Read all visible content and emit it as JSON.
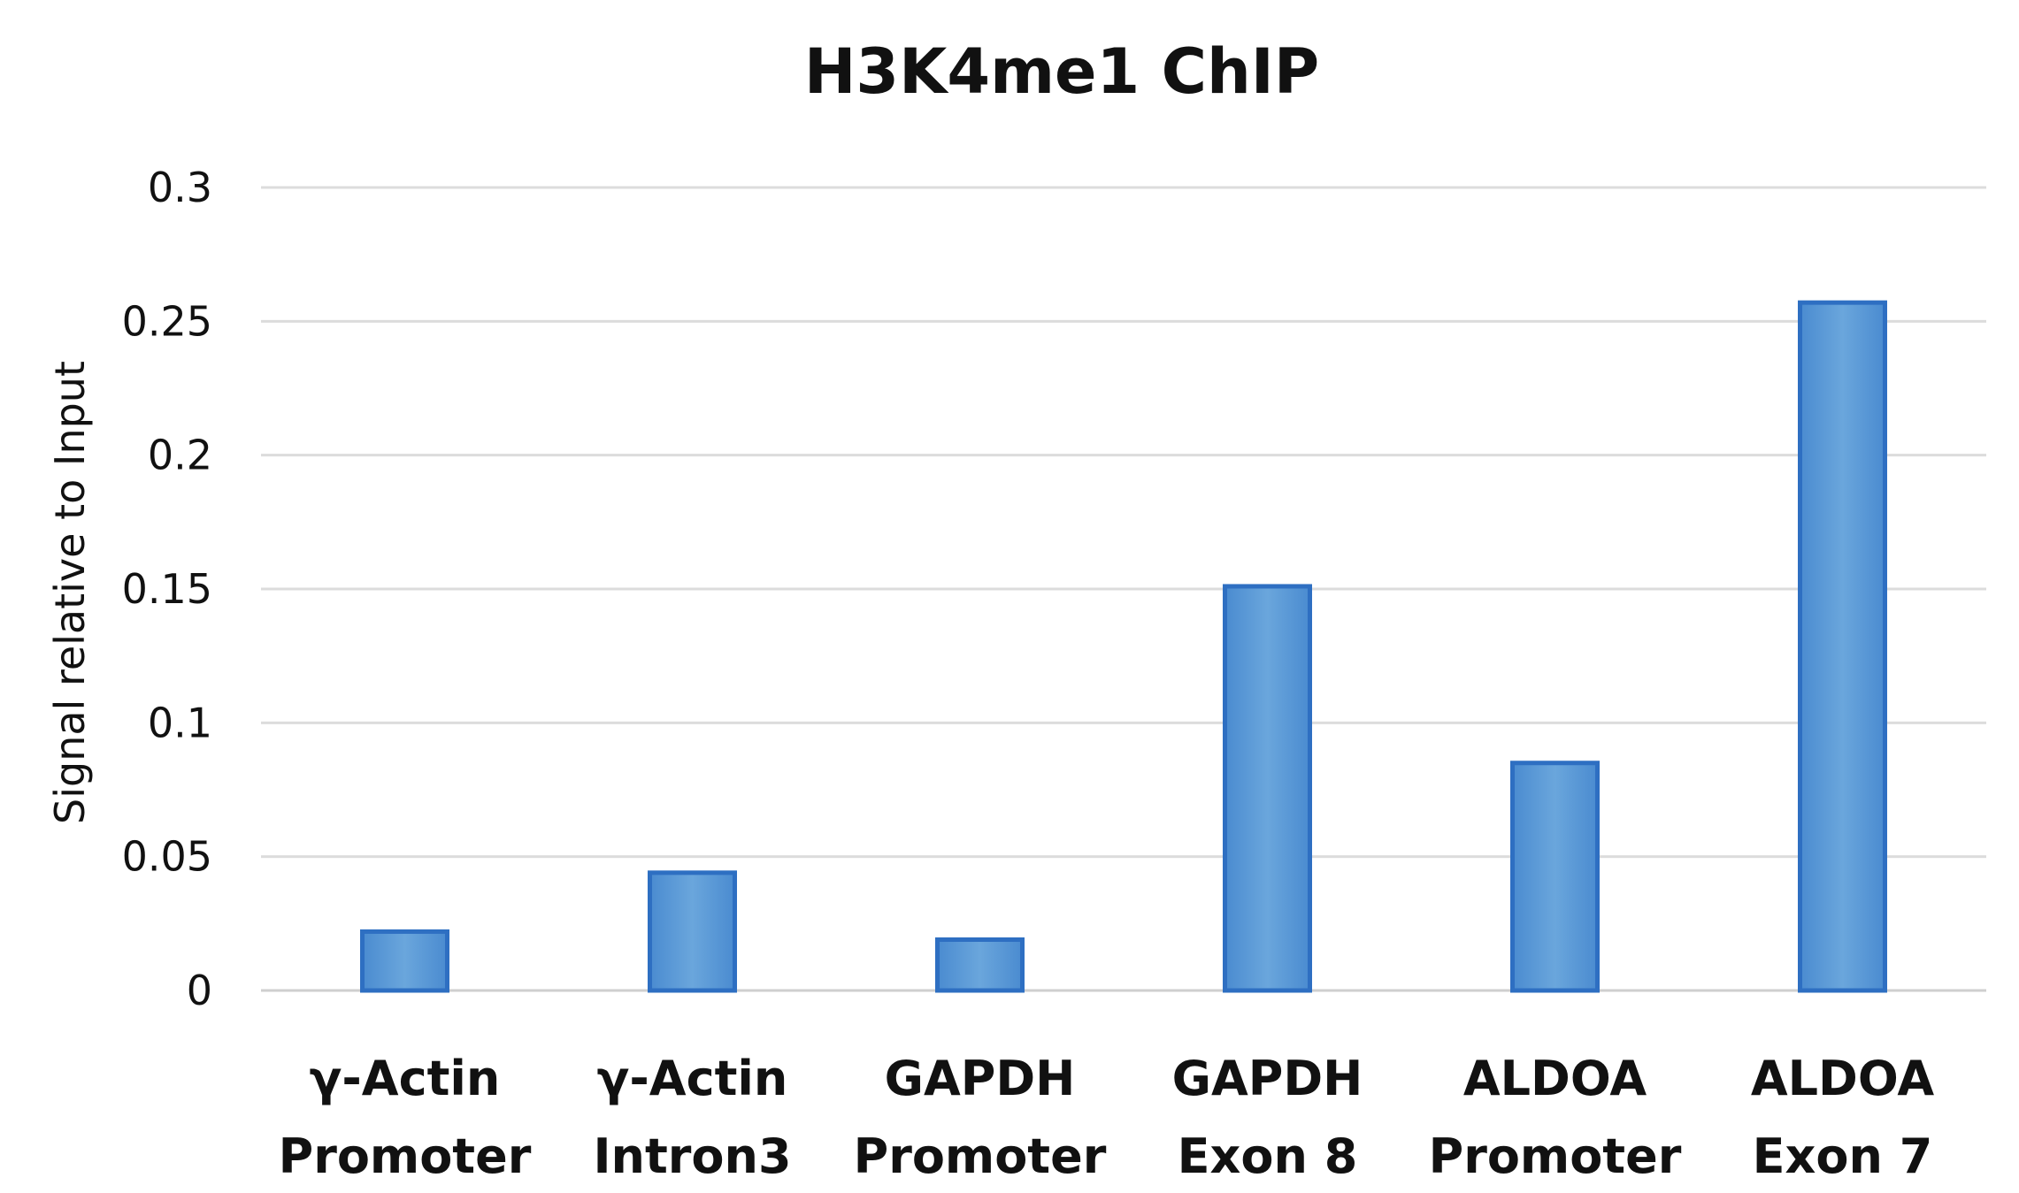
{
  "chart_data": {
    "type": "bar",
    "title": "H3K4me1 ChIP",
    "xlabel": "",
    "ylabel": "Signal relative to Input",
    "ylim": [
      0,
      0.3
    ],
    "yticks": [
      "0",
      "0.05",
      "0.1",
      "0.15",
      "0.2",
      "0.25",
      "0.3"
    ],
    "ytick_values": [
      0,
      0.05,
      0.1,
      0.15,
      0.2,
      0.25,
      0.3
    ],
    "categories": [
      [
        "γ-Actin",
        "Promoter"
      ],
      [
        "γ-Actin",
        "Intron3"
      ],
      [
        "GAPDH",
        "Promoter"
      ],
      [
        "GAPDH",
        "Exon 8"
      ],
      [
        "ALDOA",
        "Promoter"
      ],
      [
        "ALDOA",
        "Exon 7"
      ]
    ],
    "values": [
      0.022,
      0.044,
      0.019,
      0.151,
      0.085,
      0.257
    ],
    "grid": true,
    "legend": "none",
    "bar_color": "#5b9bd5",
    "bar_edge_color": "#2e6fc2"
  }
}
